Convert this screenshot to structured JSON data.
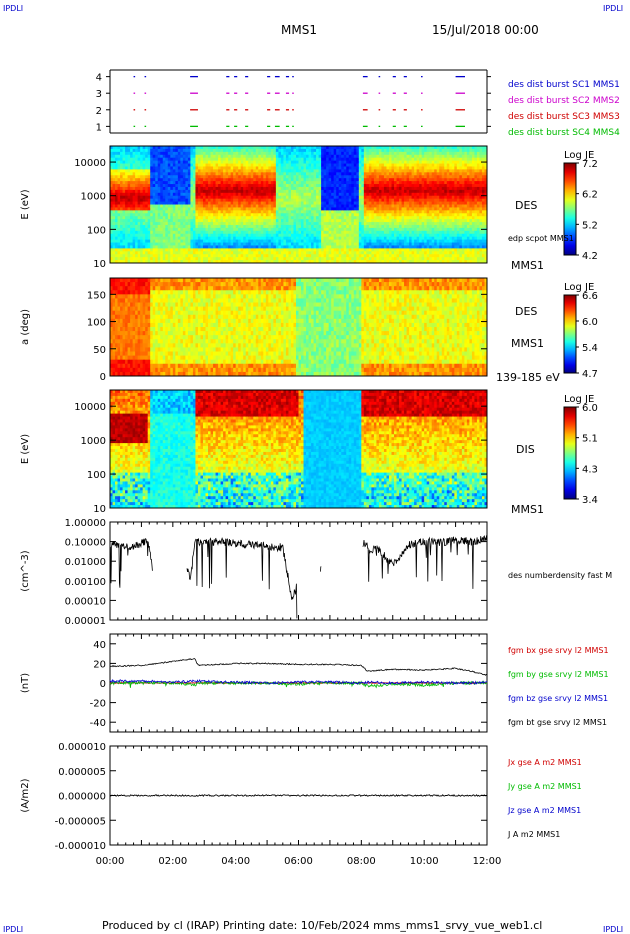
{
  "corner_labels": {
    "tl": "IPDLI",
    "tr": "IPDLI",
    "bl": "IPDLI",
    "br": "IPDLI"
  },
  "header": {
    "spacecraft": "MMS1",
    "date_time": "15/Jul/2018 00:00"
  },
  "footer": {
    "text": "Produced by cl (IRAP)   Printing date: 10/Feb/2024   mms_mms1_srvy_vue_web1.cl"
  },
  "colors": {
    "red": "#d00000",
    "magenta": "#cc00cc",
    "blue": "#0000cc",
    "green": "#00bb00",
    "black": "#000000"
  },
  "chart_data": [
    {
      "type": "scatter",
      "panel": "burst_availability",
      "x_range": [
        "00:00",
        "12:00"
      ],
      "yticks": [
        "1",
        "2",
        "3",
        "4"
      ],
      "ylim": [
        0.6,
        4.4
      ],
      "series": [
        {
          "name": "des dist burst SC1 MMS1",
          "color": "#0000cc",
          "y": 4
        },
        {
          "name": "des dist burst SC2 MMS2",
          "color": "#cc00cc",
          "y": 3
        },
        {
          "name": "des dist burst SC3 MMS3",
          "color": "#d00000",
          "y": 2
        },
        {
          "name": "des dist burst SC4 MMS4",
          "color": "#00bb00",
          "y": 1
        }
      ],
      "intervals_hours": [
        [
          0.75,
          0.8
        ],
        [
          1.1,
          1.15
        ],
        [
          2.55,
          2.8
        ],
        [
          3.7,
          3.8
        ],
        [
          3.95,
          4.05
        ],
        [
          4.3,
          4.4
        ],
        [
          5.0,
          5.1
        ],
        [
          5.25,
          5.4
        ],
        [
          5.6,
          5.7
        ],
        [
          5.8,
          5.85
        ],
        [
          8.05,
          8.2
        ],
        [
          8.55,
          8.6
        ],
        [
          9.0,
          9.1
        ],
        [
          9.35,
          9.45
        ],
        [
          9.9,
          9.95
        ],
        [
          11.0,
          11.3
        ]
      ]
    },
    {
      "type": "heatmap",
      "panel": "DES energy spectrogram",
      "ylabel": "E (eV)",
      "yscale": "log",
      "yticks": [
        "10",
        "100",
        "1000",
        "10000"
      ],
      "ylim": [
        10,
        30000
      ],
      "colorbar": {
        "label": "Log JE",
        "ticks": [
          "7.2",
          "6.2",
          "5.2",
          "4.2"
        ],
        "range": [
          4.2,
          7.2
        ]
      },
      "right_labels": [
        "DES",
        "edp scpot MMS1",
        "MMS1"
      ]
    },
    {
      "type": "heatmap",
      "panel": "DES pitch angle",
      "ylabel": "a (deg)",
      "yticks": [
        "0",
        "50",
        "100",
        "150"
      ],
      "ylim": [
        0,
        180
      ],
      "colorbar": {
        "label": "Log JE",
        "ticks": [
          "6.6",
          "6.0",
          "5.4",
          "4.7"
        ],
        "range": [
          4.7,
          6.6
        ]
      },
      "right_labels": [
        "DES",
        "MMS1",
        "139-185 eV"
      ]
    },
    {
      "type": "heatmap",
      "panel": "DIS energy spectrogram",
      "ylabel": "E (eV)",
      "yscale": "log",
      "yticks": [
        "10",
        "100",
        "1000",
        "10000"
      ],
      "ylim": [
        10,
        30000
      ],
      "colorbar": {
        "label": "Log JE",
        "ticks": [
          "6.0",
          "5.1",
          "4.3",
          "3.4"
        ],
        "range": [
          3.4,
          6.0
        ]
      },
      "right_labels": [
        "DIS",
        "MMS1"
      ]
    },
    {
      "type": "line",
      "panel": "density",
      "ylabel": "(cm^-3)",
      "yscale": "log",
      "yticks": [
        "1.00000",
        "0.10000",
        "0.01000",
        "0.00100",
        "0.00010",
        "0.00001"
      ],
      "ylim": [
        1e-05,
        1.0
      ],
      "series": [
        {
          "name": "des numberdensity fast M",
          "color": "#000000"
        }
      ],
      "x": [
        0.0,
        0.3,
        0.6,
        1.0,
        1.2,
        1.35,
        2.5,
        2.55,
        2.7,
        3.0,
        3.5,
        4.0,
        4.5,
        5.0,
        5.5,
        5.8,
        6.0,
        8.1,
        8.3,
        8.5,
        9.0,
        9.5,
        10.0,
        10.5,
        11.0,
        11.5,
        12.0
      ],
      "values": [
        0.08,
        0.06,
        0.05,
        0.08,
        0.12,
        0.005,
        0.003,
        0.0008,
        0.1,
        0.09,
        0.1,
        0.08,
        0.07,
        0.06,
        0.05,
        0.0001,
        0.001,
        0.08,
        0.03,
        0.05,
        0.006,
        0.07,
        0.1,
        0.09,
        0.12,
        0.1,
        0.14
      ]
    },
    {
      "type": "line",
      "panel": "magnetic field",
      "ylabel": "(nT)",
      "yticks": [
        "40",
        "20",
        "0",
        "-20",
        "-40"
      ],
      "ylim": [
        -50,
        50
      ],
      "series": [
        {
          "name": "fgm bx gse srvy l2 MMS1",
          "color": "#d00000"
        },
        {
          "name": "fgm by gse srvy l2 MMS1",
          "color": "#00bb00"
        },
        {
          "name": "fgm bz gse srvy l2 MMS1",
          "color": "#0000cc"
        },
        {
          "name": "fgm bt gse srvy l2 MMS1",
          "color": "#000000"
        }
      ],
      "x": [
        0,
        1,
        2,
        2.7,
        2.8,
        3.5,
        4,
        5,
        6,
        7,
        8,
        8.2,
        9,
        10,
        11,
        11.5,
        12
      ],
      "bt": [
        17,
        18,
        22,
        25,
        18,
        19,
        20,
        20,
        19,
        19,
        18,
        12,
        14,
        13,
        15,
        12,
        8
      ],
      "bz": [
        2,
        2,
        1,
        2,
        2,
        1,
        1,
        0,
        1,
        1,
        0,
        1,
        0,
        1,
        0,
        0,
        1
      ],
      "by": [
        0,
        0,
        0,
        -2,
        0,
        0,
        0,
        0,
        -1,
        0,
        0,
        -3,
        -1,
        -2,
        0,
        0,
        0
      ],
      "bx": [
        0,
        0,
        0,
        0,
        0,
        0,
        0,
        0,
        0,
        0,
        0,
        0,
        0,
        0,
        0,
        0,
        0
      ]
    },
    {
      "type": "line",
      "panel": "current density",
      "ylabel": "(A/m2)",
      "yticks": [
        "0.000010",
        "0.000005",
        "0.000000",
        "-0.000005",
        "-0.000010"
      ],
      "ylim": [
        -1e-05,
        1e-05
      ],
      "series": [
        {
          "name": "Jx gse A m2 MMS1",
          "color": "#d00000"
        },
        {
          "name": "Jy gse A m2 MMS1",
          "color": "#00bb00"
        },
        {
          "name": "Jz gse A m2 MMS1",
          "color": "#0000cc"
        },
        {
          "name": "J A m2 MMS1",
          "color": "#000000"
        }
      ],
      "x_ticks": [
        "00:00",
        "02:00",
        "04:00",
        "06:00",
        "08:00",
        "10:00",
        "12:00"
      ]
    }
  ]
}
